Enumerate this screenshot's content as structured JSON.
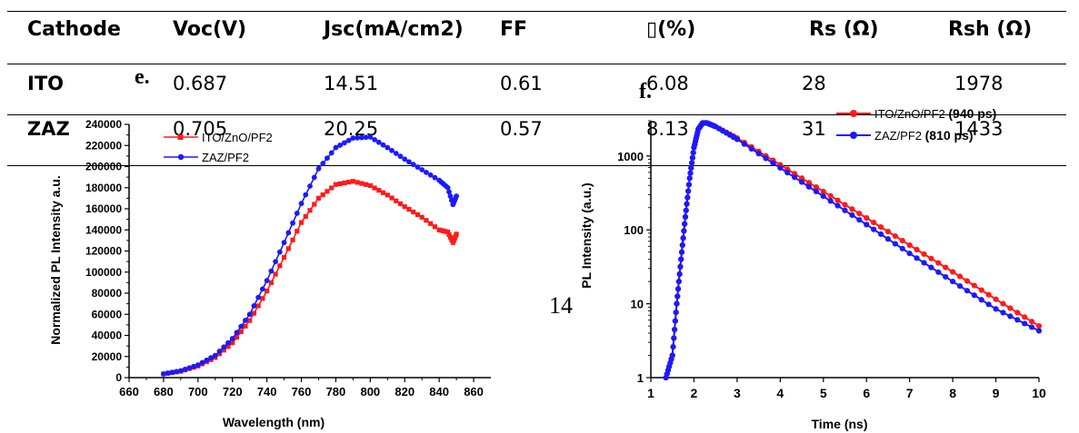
{
  "table": {
    "headers": [
      "Cathode",
      "Voc(V)",
      "Jsc(mA/cm2)",
      "FF",
      "▯(%)",
      "Rs (Ω)",
      "Rsh (Ω)"
    ],
    "rows": [
      [
        "ITO",
        "0.687",
        "14.51",
        "0.61",
        "6.08",
        "28",
        "1978"
      ],
      [
        "ZAZ",
        "0.705",
        "20.25",
        "0.57",
        "8.13",
        "31",
        "1433"
      ]
    ]
  },
  "page_number": "14",
  "panel_labels": [
    "e.",
    "f."
  ],
  "colors": {
    "red": "#ff1a1a",
    "blue": "#1a1aff"
  },
  "chart_data": [
    {
      "type": "line",
      "panel": "e.",
      "xlabel": "Wavelength (nm)",
      "ylabel": "Normalized PL Intensity a.u.",
      "xlim": [
        660,
        870
      ],
      "ylim": [
        0,
        240000
      ],
      "xticks": [
        "660",
        "680",
        "700",
        "720",
        "740",
        "760",
        "780",
        "800",
        "820",
        "840",
        "860"
      ],
      "yticks": [
        "0",
        "20000",
        "40000",
        "60000",
        "80000",
        "100000",
        "120000",
        "140000",
        "160000",
        "180000",
        "200000",
        "220000",
        "240000"
      ],
      "legend_position": "top-left",
      "x": [
        680,
        690,
        700,
        710,
        720,
        730,
        740,
        750,
        760,
        770,
        780,
        790,
        800,
        810,
        820,
        830,
        840,
        845,
        848,
        850
      ],
      "series": [
        {
          "name": "ITO/ZnO/PF2",
          "color": "#ff1a1a",
          "marker": "square",
          "values": [
            3500,
            6000,
            11000,
            19000,
            33000,
            54000,
            82000,
            114000,
            147000,
            170000,
            183000,
            186000,
            182000,
            173000,
            162000,
            152000,
            140000,
            138000,
            128000,
            136000
          ]
        },
        {
          "name": "ZAZ/PF2",
          "color": "#1a1aff",
          "marker": "circle",
          "values": [
            3500,
            6500,
            12000,
            21000,
            37000,
            60000,
            92000,
            128000,
            165000,
            198000,
            218000,
            227000,
            228000,
            218000,
            207000,
            197000,
            187000,
            180000,
            164000,
            172000
          ]
        }
      ]
    },
    {
      "type": "line",
      "panel": "f.",
      "xlabel": "Time (ns)",
      "ylabel": "PL Intensity (a.u.)",
      "xlim": [
        1,
        10
      ],
      "ylim": [
        1,
        3000
      ],
      "yscale": "log",
      "xticks": [
        "1",
        "2",
        "3",
        "4",
        "5",
        "6",
        "7",
        "8",
        "9",
        "10"
      ],
      "yticks": [
        "1",
        "10",
        "100",
        "1000"
      ],
      "legend_position": "top-right",
      "x": [
        1.35,
        1.5,
        1.6,
        1.7,
        1.8,
        1.9,
        2.0,
        2.1,
        2.2,
        2.3,
        2.5,
        3,
        4,
        5,
        6,
        7,
        8,
        9,
        10
      ],
      "series": [
        {
          "name": "ITO/ZnO/PF2",
          "lifetime": "(940 ps)",
          "color": "#ff1a1a",
          "marker": "circle",
          "values": [
            1,
            2,
            10,
            40,
            150,
            500,
            1300,
            2300,
            2800,
            2800,
            2500,
            1750,
            760,
            330,
            145,
            62,
            27,
            11.5,
            5
          ]
        },
        {
          "name": "ZAZ/PF2",
          "lifetime": "(810 ps)",
          "color": "#1a1aff",
          "marker": "circle",
          "values": [
            1,
            2,
            10,
            40,
            150,
            500,
            1300,
            2300,
            2800,
            2800,
            2500,
            1680,
            690,
            285,
            118,
            48,
            20,
            8.5,
            4.3
          ]
        }
      ]
    }
  ]
}
